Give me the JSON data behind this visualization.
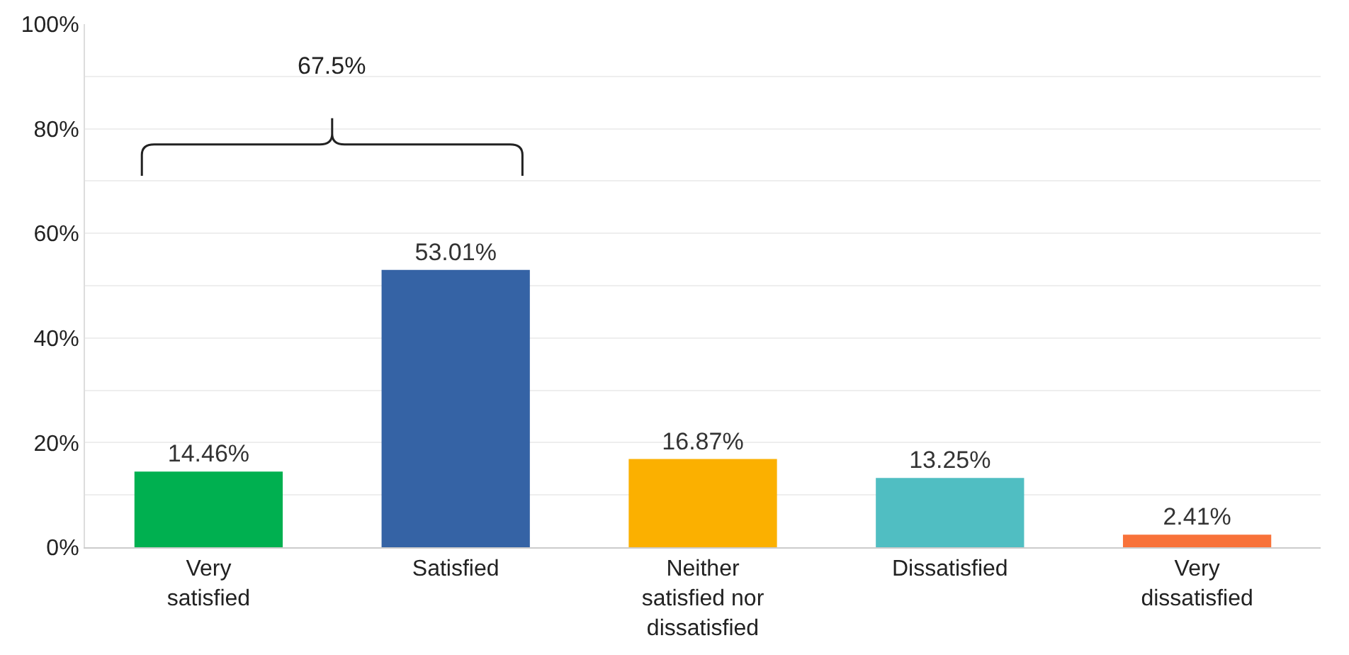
{
  "chart_data": {
    "type": "bar",
    "categories": [
      "Very satisfied",
      "Satisfied",
      "Neither satisfied nor dissatisfied",
      "Dissatisfied",
      "Very dissatisfied"
    ],
    "values": [
      14.46,
      53.01,
      16.87,
      13.25,
      2.41
    ],
    "colors": [
      "#00b050",
      "#3563a5",
      "#fbb000",
      "#50bec2",
      "#f87239"
    ],
    "value_labels": [
      "14.46%",
      "53.01%",
      "16.87%",
      "13.25%",
      "2.41%"
    ],
    "ylim": [
      0,
      100
    ],
    "yticks": [
      {
        "value": 0,
        "label": "0%"
      },
      {
        "value": 10,
        "label": null
      },
      {
        "value": 20,
        "label": "20%"
      },
      {
        "value": 30,
        "label": null
      },
      {
        "value": 40,
        "label": "40%"
      },
      {
        "value": 50,
        "label": null
      },
      {
        "value": 60,
        "label": "60%"
      },
      {
        "value": 70,
        "label": null
      },
      {
        "value": 80,
        "label": "80%"
      },
      {
        "value": 90,
        "label": null
      },
      {
        "value": 100,
        "label": "100%"
      }
    ],
    "grid": "y",
    "annotations": [
      "67.5%"
    ]
  }
}
